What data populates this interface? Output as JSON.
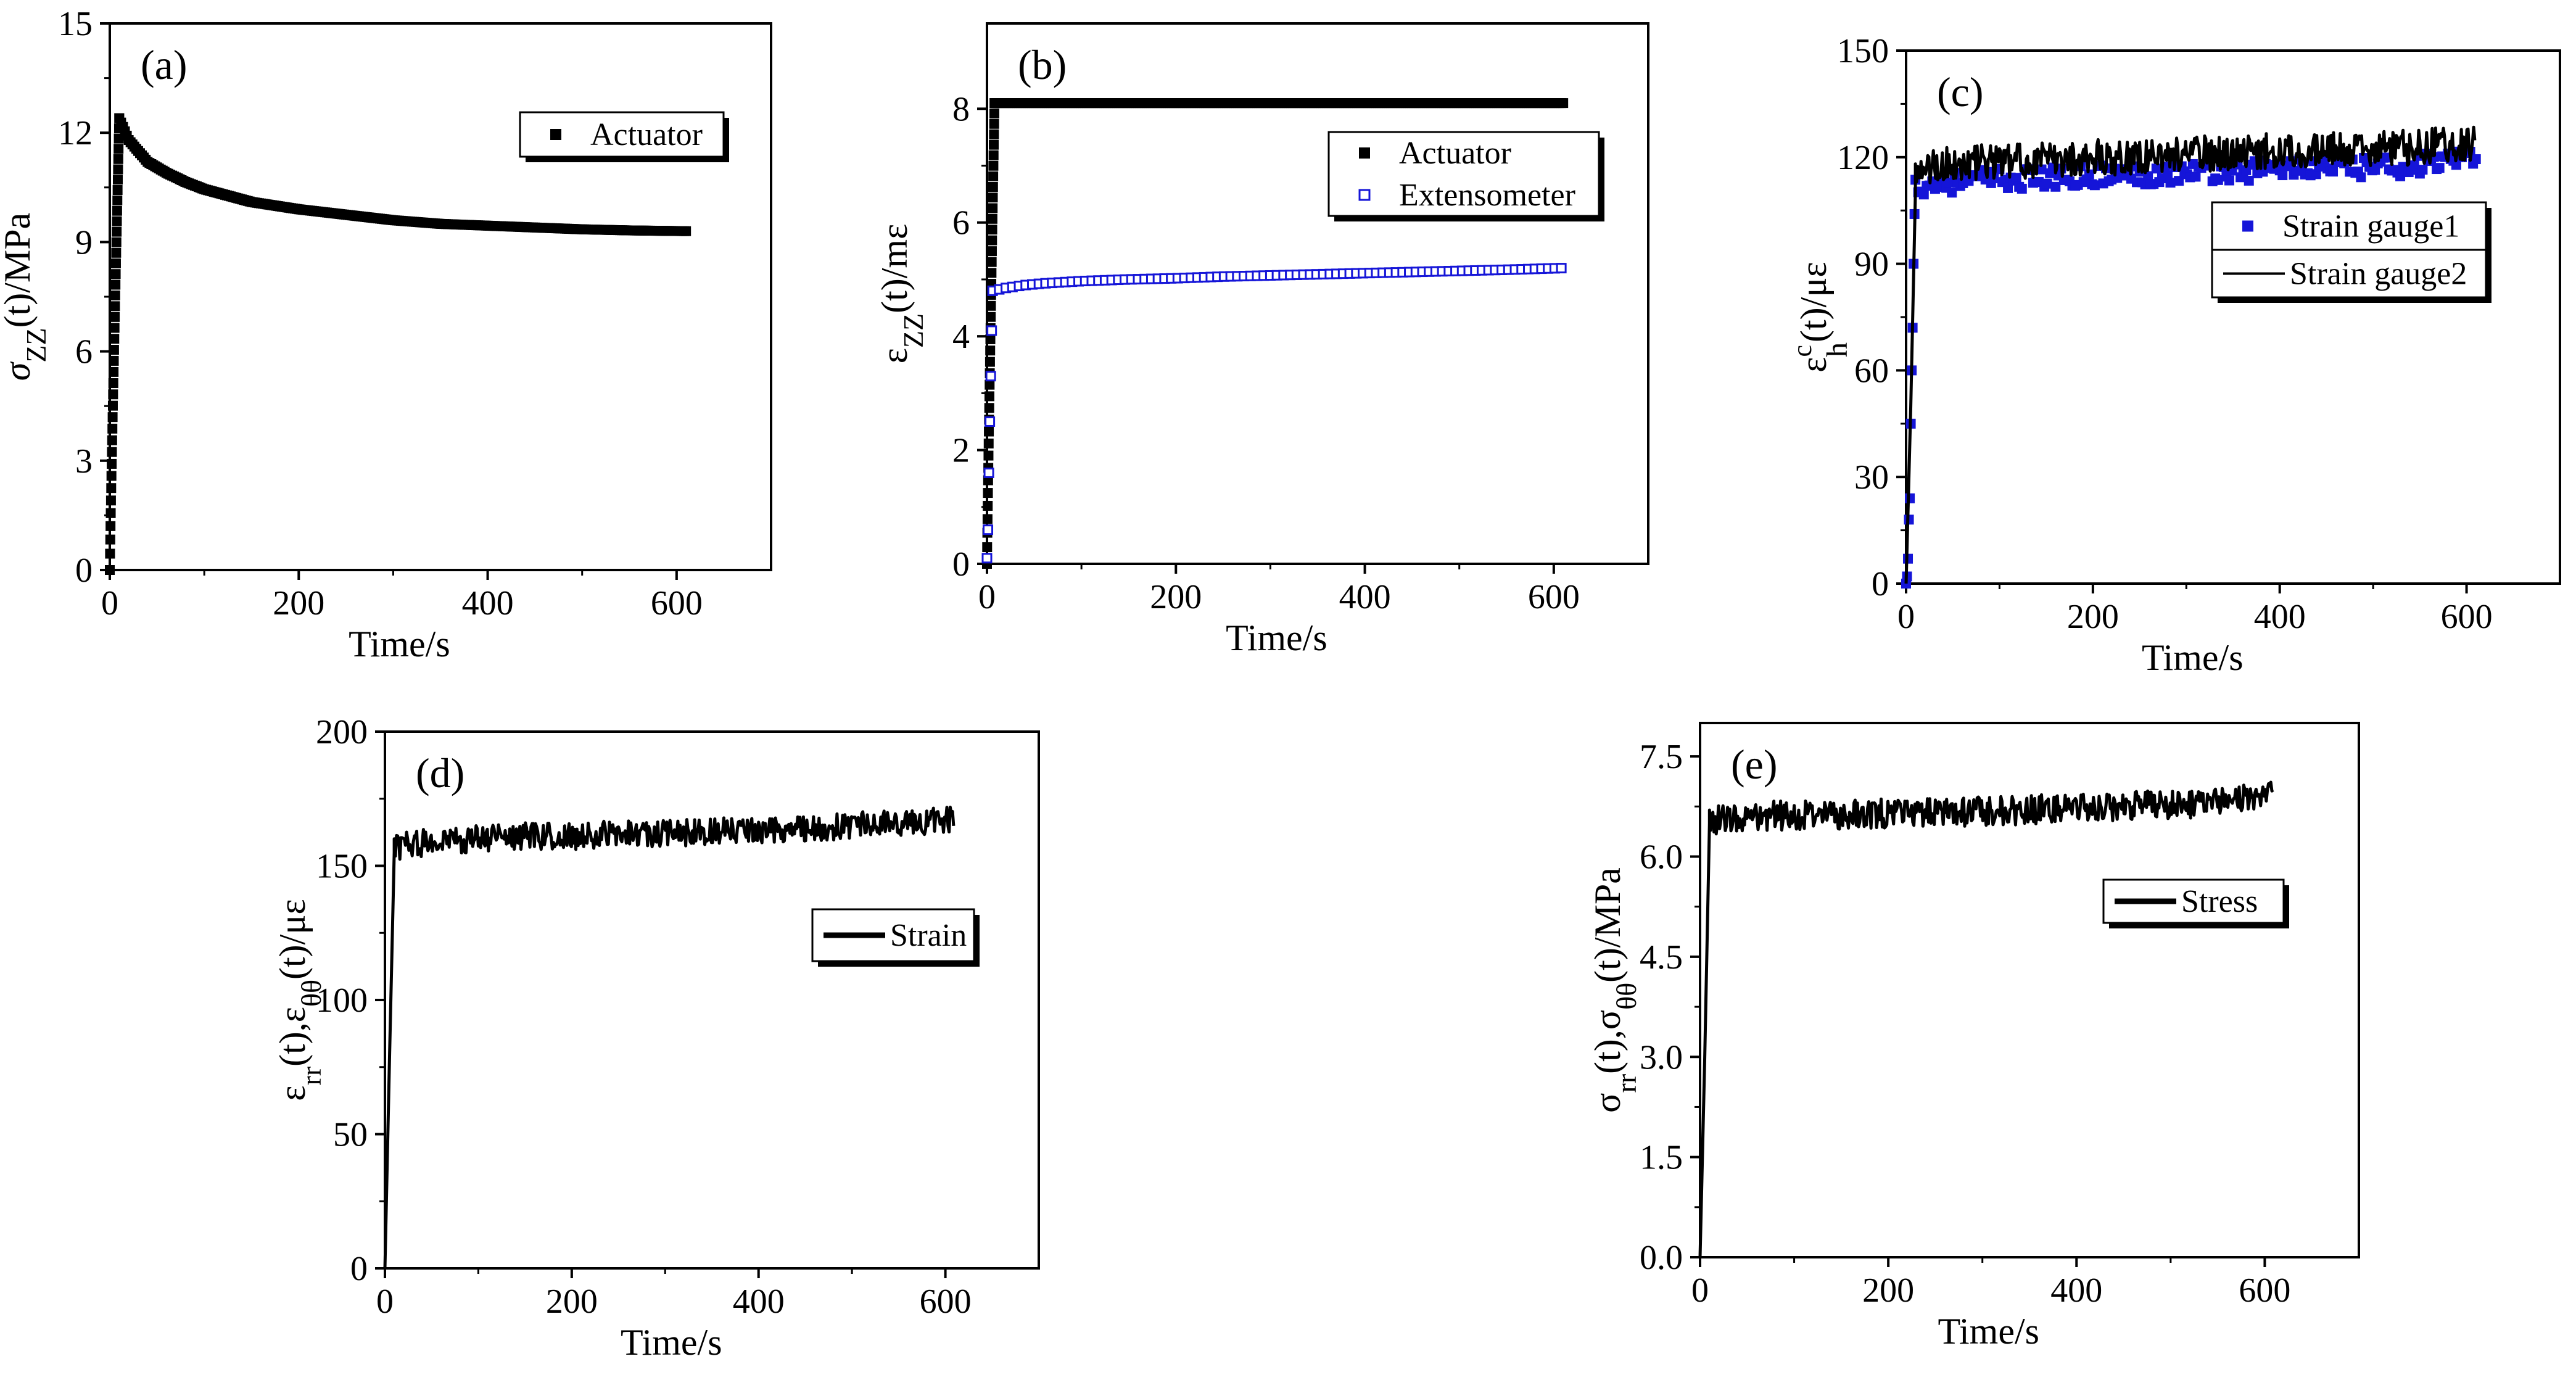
{
  "colors": {
    "black": "#000000",
    "blue": "#1515d8",
    "white": "#ffffff"
  },
  "chart_data": [
    {
      "id": "a",
      "type": "scatter",
      "panel_label": "(a)",
      "xlabel": "Time/s",
      "ylabel": {
        "base": "σ",
        "sub": "ZZ",
        "rest": "(t)/MPa"
      },
      "xlim": [
        0,
        700
      ],
      "ylim": [
        0,
        15
      ],
      "xticks": [
        "0",
        "200",
        "400",
        "600"
      ],
      "yticks": [
        "0",
        "3",
        "6",
        "9",
        "12",
        "15"
      ],
      "xtickvals": [
        0,
        200,
        400,
        600
      ],
      "ytickvals": [
        0,
        3,
        6,
        9,
        12,
        15
      ],
      "legend_pos": "top-right",
      "series": [
        {
          "name": "Actuator",
          "style": "filled-square",
          "color": "#000000",
          "ramp_end": [
            10,
            12.4
          ],
          "x": [
            10,
            20,
            40,
            60,
            80,
            100,
            150,
            200,
            250,
            300,
            350,
            400,
            450,
            500,
            550,
            610
          ],
          "y": [
            12.4,
            11.8,
            11.2,
            10.9,
            10.65,
            10.45,
            10.1,
            9.9,
            9.75,
            9.6,
            9.5,
            9.45,
            9.4,
            9.35,
            9.32,
            9.3
          ]
        }
      ]
    },
    {
      "id": "b",
      "type": "scatter",
      "panel_label": "(b)",
      "xlabel": "Time/s",
      "ylabel": {
        "base": "ε",
        "sub": "ZZ",
        "rest": "(t)/mε"
      },
      "xlim": [
        0,
        700
      ],
      "ylim": [
        0,
        9.5
      ],
      "xticks": [
        "0",
        "200",
        "400",
        "600"
      ],
      "yticks": [
        "0",
        "2",
        "4",
        "6",
        "8"
      ],
      "xtickvals": [
        0,
        200,
        400,
        600
      ],
      "ytickvals": [
        0,
        2,
        4,
        6,
        8
      ],
      "legend_pos": "top-right",
      "series": [
        {
          "name": "Actuator",
          "style": "filled-square",
          "color": "#000000",
          "ramp_end": [
            8,
            8.1
          ],
          "x": [
            8,
            100,
            200,
            300,
            400,
            500,
            610
          ],
          "y": [
            8.1,
            8.1,
            8.1,
            8.1,
            8.1,
            8.1,
            8.1
          ]
        },
        {
          "name": "Extensometer",
          "style": "open-square",
          "color": "#1515d8",
          "ramp": [
            [
              0,
              0.1
            ],
            [
              1,
              0.6
            ],
            [
              2,
              1.6
            ],
            [
              3,
              2.5
            ],
            [
              4,
              3.3
            ],
            [
              5,
              4.1
            ]
          ],
          "x": [
            6,
            20,
            40,
            60,
            80,
            100,
            150,
            200,
            250,
            300,
            350,
            400,
            450,
            500,
            550,
            610
          ],
          "y": [
            4.8,
            4.85,
            4.9,
            4.93,
            4.95,
            4.97,
            5.0,
            5.02,
            5.05,
            5.07,
            5.09,
            5.11,
            5.13,
            5.15,
            5.17,
            5.2
          ]
        }
      ]
    },
    {
      "id": "c",
      "type": "scatter",
      "panel_label": "(c)",
      "xlabel": "Time/s",
      "ylabel": {
        "base": "ε",
        "sup": "c",
        "sub": "h",
        "rest": "(t)/με"
      },
      "xlim": [
        0,
        700
      ],
      "ylim": [
        0,
        150
      ],
      "xticks": [
        "0",
        "200",
        "400",
        "600"
      ],
      "yticks": [
        "0",
        "30",
        "60",
        "90",
        "120",
        "150"
      ],
      "xtickvals": [
        0,
        200,
        400,
        600
      ],
      "ytickvals": [
        0,
        30,
        60,
        90,
        120,
        150
      ],
      "legend_pos": "right",
      "series": [
        {
          "name": "Strain gauge1",
          "style": "filled-square",
          "color": "#1515d8",
          "ramp": [
            [
              0,
              0
            ],
            [
              1,
              2
            ],
            [
              2,
              7
            ],
            [
              3,
              18
            ],
            [
              4,
              24
            ],
            [
              5,
              45
            ],
            [
              6,
              60
            ],
            [
              7,
              72
            ],
            [
              8,
              90
            ],
            [
              9,
              104
            ]
          ],
          "x": [
            10,
            50,
            100,
            150,
            200,
            250,
            300,
            350,
            400,
            450,
            500,
            550,
            610
          ],
          "y": [
            112,
            113,
            114,
            114,
            115,
            115,
            116,
            116,
            117,
            117,
            117,
            118,
            119
          ],
          "noise": 3
        },
        {
          "name": "Strain gauge2",
          "style": "line",
          "color": "#000000",
          "ramp": [
            [
              0,
              0
            ],
            [
              5,
              50
            ],
            [
              10,
              110
            ]
          ],
          "x": [
            10,
            50,
            100,
            150,
            200,
            250,
            300,
            350,
            400,
            450,
            500,
            550,
            610
          ],
          "y": [
            117,
            118,
            119,
            119,
            120,
            120,
            121,
            121,
            122,
            122,
            122,
            123,
            124
          ],
          "noise": 5
        }
      ]
    },
    {
      "id": "d",
      "type": "line",
      "panel_label": "(d)",
      "xlabel": "Time/s",
      "ylabel": {
        "text": "ε_rr(t),ε_θθ(t)/με"
      },
      "xlim": [
        0,
        700
      ],
      "ylim": [
        0,
        200
      ],
      "xticks": [
        "0",
        "200",
        "400",
        "600"
      ],
      "yticks": [
        "0",
        "50",
        "100",
        "150",
        "200"
      ],
      "xtickvals": [
        0,
        200,
        400,
        600
      ],
      "ytickvals": [
        0,
        50,
        100,
        150,
        200
      ],
      "legend_pos": "center-right",
      "series": [
        {
          "name": "Strain",
          "style": "line",
          "color": "#000000",
          "ramp": [
            [
              0,
              0
            ],
            [
              5,
              80
            ],
            [
              10,
              155
            ]
          ],
          "x": [
            10,
            50,
            100,
            150,
            200,
            250,
            300,
            350,
            400,
            450,
            500,
            550,
            610
          ],
          "y": [
            157,
            159,
            160,
            161,
            161,
            162,
            162,
            163,
            163,
            164,
            165,
            166,
            167
          ],
          "noise": 5
        }
      ]
    },
    {
      "id": "e",
      "type": "line",
      "panel_label": "(e)",
      "xlabel": "Time/s",
      "ylabel": {
        "text": "σ_rr(t),σ_θθ(t)/MPa"
      },
      "xlim": [
        0,
        700
      ],
      "ylim": [
        0,
        8.0
      ],
      "xticks": [
        "0",
        "200",
        "400",
        "600"
      ],
      "yticks": [
        "0.0",
        "1.5",
        "3.0",
        "4.5",
        "6.0",
        "7.5"
      ],
      "xtickvals": [
        0,
        200,
        400,
        600
      ],
      "ytickvals": [
        0,
        1.5,
        3.0,
        4.5,
        6.0,
        7.5
      ],
      "legend_pos": "top-right",
      "series": [
        {
          "name": "Stress",
          "style": "line",
          "color": "#000000",
          "ramp": [
            [
              0,
              0
            ],
            [
              5,
              3
            ],
            [
              10,
              6.5
            ]
          ],
          "x": [
            10,
            50,
            100,
            150,
            200,
            250,
            300,
            350,
            400,
            450,
            500,
            550,
            610
          ],
          "y": [
            6.55,
            6.6,
            6.62,
            6.63,
            6.65,
            6.66,
            6.68,
            6.7,
            6.72,
            6.75,
            6.78,
            6.82,
            6.9
          ],
          "noise": 0.22
        }
      ]
    }
  ]
}
